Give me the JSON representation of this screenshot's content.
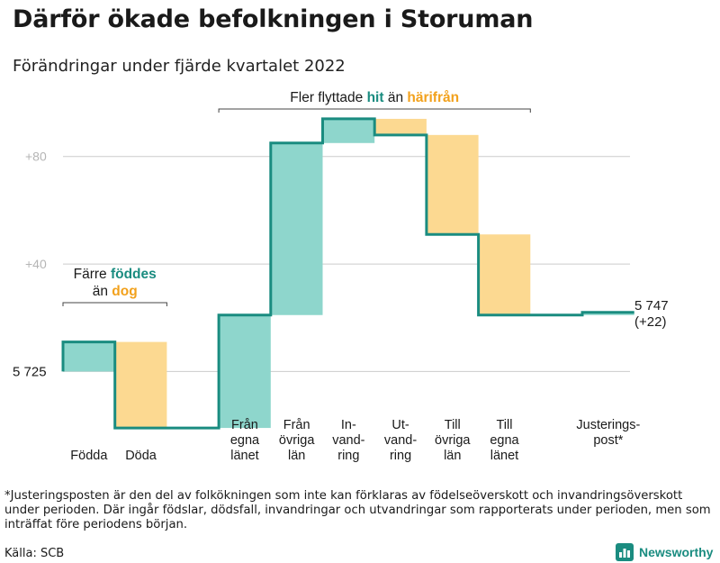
{
  "title": "Därför ökade befolkningen i Storuman",
  "subtitle": "Förändringar under fjärde kvartalet 2022",
  "footnote": "*Justeringsposten är den del av folkökningen som inte kan förklaras av födelseöverskott och invandringsöverskott under perioden. Där ingår födslar, dödsfall, invandringar och utvandringar som rapporterats under perioden, men som inträffat före periodens början.",
  "source": "Källa: SCB",
  "brand": "Newsworthy",
  "colors": {
    "increase": "#8ed6cc",
    "decrease": "#fcd991",
    "line": "#1a8c80",
    "teal_text": "#1a8c80",
    "orange_text": "#f2a11c",
    "grid": "#cccccc"
  },
  "chart_data": {
    "type": "waterfall",
    "start_value": 5725,
    "start_label": "5 725",
    "end_label_value": "5 747",
    "end_label_change": "(+22)",
    "y_ticks": [
      {
        "value": 0,
        "label": ""
      },
      {
        "value": 40,
        "label": "+40"
      },
      {
        "value": 80,
        "label": "+80"
      }
    ],
    "ylim": [
      -26,
      98
    ],
    "steps": [
      {
        "name": "Födda",
        "label_lines": [
          "Födda"
        ],
        "change": 11
      },
      {
        "name": "Döda",
        "label_lines": [
          "Döda"
        ],
        "change": -32
      },
      {
        "name": "gap",
        "label_lines": [],
        "change": 0
      },
      {
        "name": "Från egna länet",
        "label_lines": [
          "Från",
          "egna",
          "länet"
        ],
        "change": 42
      },
      {
        "name": "Från övriga län",
        "label_lines": [
          "Från",
          "övriga",
          "län"
        ],
        "change": 64
      },
      {
        "name": "Invandring",
        "label_lines": [
          "In-",
          "vand-",
          "ring"
        ],
        "change": 9
      },
      {
        "name": "Utvandring",
        "label_lines": [
          "Ut-",
          "vand-",
          "ring"
        ],
        "change": -6
      },
      {
        "name": "Till övriga län",
        "label_lines": [
          "Till",
          "övriga",
          "län"
        ],
        "change": -37
      },
      {
        "name": "Till egna länet",
        "label_lines": [
          "Till",
          "egna",
          "länet"
        ],
        "change": -30
      },
      {
        "name": "gap",
        "label_lines": [],
        "change": 0
      },
      {
        "name": "Justeringspost*",
        "label_lines": [
          "Justerings-",
          "post*"
        ],
        "change": 1
      }
    ],
    "annotations": [
      {
        "name": "births-deaths",
        "from_step": 0,
        "to_step": 1,
        "lines": [
          [
            {
              "text": "Färre ",
              "color": "normal"
            },
            {
              "text": "föddes",
              "color": "teal"
            }
          ],
          [
            {
              "text": "än ",
              "color": "normal"
            },
            {
              "text": "dog",
              "color": "orange"
            }
          ]
        ]
      },
      {
        "name": "migration",
        "from_step": 3,
        "to_step": 8,
        "lines": [
          [
            {
              "text": "Fler flyttade ",
              "color": "normal"
            },
            {
              "text": "hit",
              "color": "teal"
            },
            {
              "text": " än ",
              "color": "normal"
            },
            {
              "text": "härifrån",
              "color": "orange"
            }
          ]
        ]
      }
    ]
  }
}
